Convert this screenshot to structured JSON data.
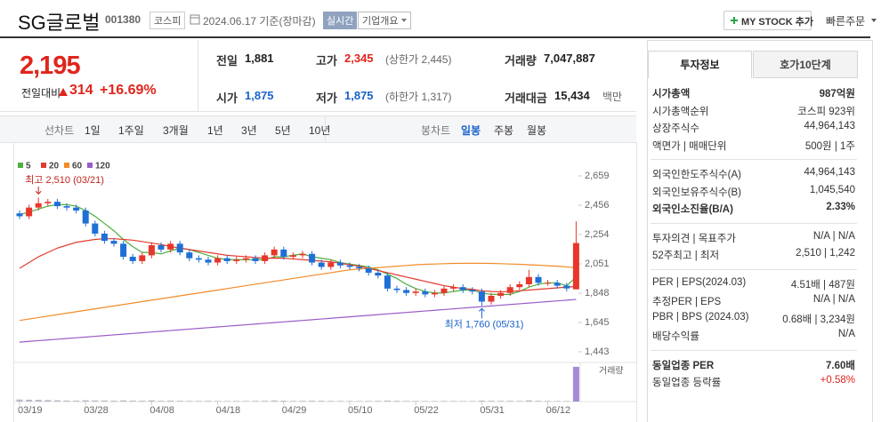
{
  "header": {
    "name": "SG글로벌",
    "code": "001380",
    "market": "코스피",
    "date": "2024.06.17 기준(장마감)",
    "realtime": "실시간",
    "company_info": "기업개요",
    "my_stock": "MY STOCK 추가",
    "quick_order": "빠른주문"
  },
  "price": {
    "current": "2,195",
    "change_label": "전일대비",
    "change": "314",
    "change_rate": "+16.69%"
  },
  "summary": [
    [
      {
        "label": "전일",
        "value": "1,881"
      },
      {
        "label": "고가",
        "value": "2,345",
        "note": "(상한가 2,445)",
        "color": "#e0251c"
      },
      {
        "label": "거래량",
        "value": "7,047,887"
      }
    ],
    [
      {
        "label": "시가",
        "value": "1,875",
        "color": "#1a62c9"
      },
      {
        "label": "저가",
        "value": "1,875",
        "note": "(하한가 1,317)",
        "color": "#1a62c9"
      },
      {
        "label": "거래대금",
        "value": "15,434",
        "note": "백만"
      }
    ]
  ],
  "chart_tabs": {
    "line_label": "선차트",
    "line_periods": [
      "1일",
      "1주일",
      "3개월",
      "1년",
      "3년",
      "5년",
      "10년"
    ],
    "candle_label": "봉차트",
    "candle_periods": [
      "일봉",
      "주봉",
      "월봉"
    ],
    "active_candle": 0
  },
  "chart_data": {
    "type": "candlestick",
    "categories": [
      "03/19",
      null,
      null,
      null,
      null,
      null,
      null,
      "03/28",
      null,
      null,
      null,
      null,
      null,
      null,
      "04/08",
      null,
      null,
      null,
      null,
      null,
      null,
      "04/18",
      null,
      null,
      null,
      null,
      null,
      null,
      "04/29",
      null,
      null,
      null,
      null,
      null,
      null,
      "05/10",
      null,
      null,
      null,
      null,
      null,
      null,
      "05/22",
      null,
      null,
      null,
      null,
      null,
      null,
      "05/31",
      null,
      null,
      null,
      null,
      null,
      null,
      "06/12",
      null,
      null,
      null
    ],
    "open": [
      2400,
      2380,
      2440,
      2470,
      2480,
      2450,
      2440,
      2420,
      2330,
      2260,
      2210,
      2190,
      2100,
      2070,
      2110,
      2180,
      2150,
      2190,
      2130,
      2090,
      2080,
      2060,
      2090,
      2070,
      2080,
      2090,
      2070,
      2110,
      2150,
      2100,
      2110,
      2120,
      2060,
      2030,
      2060,
      2040,
      2030,
      2020,
      1990,
      1970,
      1880,
      1870,
      1850,
      1860,
      1840,
      1850,
      1880,
      1890,
      1870,
      1860,
      1790,
      1830,
      1850,
      1890,
      1910,
      1960,
      1920,
      1920,
      1900,
      1875
    ],
    "high": [
      2420,
      2460,
      2510,
      2500,
      2500,
      2470,
      2460,
      2440,
      2350,
      2280,
      2230,
      2210,
      2120,
      2130,
      2200,
      2200,
      2210,
      2210,
      2150,
      2110,
      2100,
      2110,
      2110,
      2100,
      2110,
      2110,
      2130,
      2170,
      2170,
      2130,
      2140,
      2140,
      2080,
      2080,
      2080,
      2060,
      2050,
      2040,
      2010,
      1990,
      1900,
      1890,
      1880,
      1880,
      1870,
      1900,
      1910,
      1910,
      1890,
      1880,
      1850,
      1870,
      1910,
      1930,
      2010,
      1980,
      1940,
      1940,
      1920,
      2345
    ],
    "low": [
      2360,
      2360,
      2420,
      2450,
      2430,
      2420,
      2400,
      2310,
      2240,
      2190,
      2170,
      2080,
      2050,
      2050,
      2090,
      2130,
      2130,
      2110,
      2070,
      2060,
      2040,
      2040,
      2050,
      2050,
      2060,
      2050,
      2050,
      2090,
      2080,
      2080,
      2090,
      2040,
      2010,
      2010,
      2020,
      2010,
      2000,
      1970,
      1950,
      1860,
      1850,
      1830,
      1830,
      1820,
      1820,
      1830,
      1860,
      1850,
      1840,
      1760,
      1770,
      1810,
      1830,
      1870,
      1890,
      1900,
      1900,
      1880,
      1861,
      1875
    ],
    "close": [
      2380,
      2440,
      2470,
      2480,
      2450,
      2440,
      2420,
      2330,
      2260,
      2210,
      2190,
      2100,
      2070,
      2110,
      2180,
      2150,
      2190,
      2130,
      2090,
      2080,
      2060,
      2090,
      2070,
      2080,
      2090,
      2070,
      2110,
      2150,
      2100,
      2110,
      2120,
      2060,
      2030,
      2060,
      2040,
      2030,
      2020,
      1990,
      1970,
      1880,
      1870,
      1850,
      1860,
      1840,
      1850,
      1880,
      1890,
      1870,
      1860,
      1790,
      1830,
      1850,
      1890,
      1910,
      1960,
      1920,
      1920,
      1900,
      1881,
      2195
    ],
    "volume": [
      420000,
      380000,
      350000,
      300000,
      260000,
      210000,
      190000,
      260000,
      240000,
      220000,
      180000,
      230000,
      200000,
      170000,
      250000,
      160000,
      190000,
      150000,
      140000,
      130000,
      150000,
      120000,
      110000,
      130000,
      120000,
      140000,
      160000,
      220000,
      180000,
      130000,
      150000,
      170000,
      160000,
      140000,
      130000,
      120000,
      110000,
      130000,
      140000,
      200000,
      150000,
      130000,
      120000,
      110000,
      100000,
      130000,
      120000,
      100000,
      110000,
      210000,
      160000,
      140000,
      150000,
      130000,
      240000,
      150000,
      120000,
      110000,
      100000,
      7047887
    ],
    "ylim": [
      1443,
      2659
    ],
    "yticks": [
      {
        "value": 2659,
        "label": "2,659"
      },
      {
        "value": 2456,
        "label": "2,456"
      },
      {
        "value": 2254,
        "label": "2,254"
      },
      {
        "value": 2051,
        "label": "2,051"
      },
      {
        "value": 1848,
        "label": "1,848"
      },
      {
        "value": 1645,
        "label": "1,645"
      },
      {
        "value": 1443,
        "label": "1,443"
      }
    ],
    "volume_lim": [
      0,
      7200000
    ],
    "volume_label": "거래량",
    "up_color": "#e8362b",
    "down_color": "#1f6fd6",
    "volume_color": "#b9b9c4",
    "volume_today_color": "#a58ad6",
    "annotations": {
      "high": "최고 2,510 (03/21)",
      "low": "최저 1,760 (05/31)"
    },
    "moving_averages": [
      {
        "name": "5",
        "color": "#4caf3f",
        "values": [
          2390,
          2410,
          2430,
          2450,
          2460,
          2460,
          2450,
          2420,
          2380,
          2330,
          2280,
          2220,
          2170,
          2130,
          2130,
          2120,
          2140,
          2160,
          2150,
          2130,
          2110,
          2090,
          2080,
          2080,
          2080,
          2080,
          2080,
          2100,
          2100,
          2110,
          2120,
          2100,
          2090,
          2080,
          2060,
          2050,
          2040,
          2030,
          2010,
          1980,
          1950,
          1910,
          1880,
          1860,
          1850,
          1850,
          1860,
          1870,
          1870,
          1850,
          1840,
          1840,
          1840,
          1860,
          1890,
          1910,
          1920,
          1920,
          1900,
          1960
        ]
      },
      {
        "name": "20",
        "color": "#e23b2e",
        "values": [
          2020,
          2060,
          2100,
          2130,
          2160,
          2180,
          2200,
          2210,
          2220,
          2225,
          2225,
          2220,
          2215,
          2205,
          2195,
          2185,
          2170,
          2160,
          2150,
          2140,
          2130,
          2120,
          2110,
          2105,
          2100,
          2095,
          2090,
          2090,
          2090,
          2085,
          2080,
          2075,
          2070,
          2065,
          2055,
          2045,
          2035,
          2020,
          2005,
          1990,
          1975,
          1960,
          1945,
          1930,
          1915,
          1900,
          1890,
          1880,
          1875,
          1865,
          1860,
          1858,
          1860,
          1865,
          1870,
          1875,
          1880,
          1885,
          1890,
          1895
        ]
      },
      {
        "name": "60",
        "color": "#f28c28",
        "values": [
          1660,
          1670,
          1680,
          1690,
          1700,
          1710,
          1720,
          1730,
          1740,
          1750,
          1760,
          1770,
          1780,
          1790,
          1800,
          1810,
          1820,
          1830,
          1840,
          1850,
          1860,
          1870,
          1880,
          1890,
          1900,
          1910,
          1920,
          1930,
          1940,
          1950,
          1960,
          1970,
          1980,
          1990,
          2000,
          2010,
          2015,
          2020,
          2025,
          2030,
          2035,
          2040,
          2045,
          2048,
          2050,
          2052,
          2054,
          2055,
          2055,
          2055,
          2054,
          2052,
          2050,
          2048,
          2045,
          2042,
          2038,
          2035,
          2030,
          2025
        ]
      },
      {
        "name": "120",
        "color": "#9a5cc6",
        "values": [
          1510,
          1515,
          1520,
          1525,
          1530,
          1535,
          1540,
          1545,
          1550,
          1555,
          1560,
          1565,
          1570,
          1575,
          1580,
          1585,
          1590,
          1595,
          1600,
          1605,
          1610,
          1615,
          1620,
          1625,
          1630,
          1635,
          1640,
          1645,
          1650,
          1655,
          1660,
          1665,
          1670,
          1675,
          1680,
          1685,
          1690,
          1695,
          1700,
          1705,
          1710,
          1715,
          1720,
          1725,
          1730,
          1735,
          1740,
          1745,
          1750,
          1755,
          1760,
          1765,
          1770,
          1775,
          1780,
          1785,
          1790,
          1795,
          1800,
          1805
        ]
      }
    ]
  },
  "invest": {
    "tabs": [
      "투자정보",
      "호가10단계"
    ],
    "groups": [
      [
        {
          "label": "시가총액",
          "value": "987억원",
          "strong": true
        },
        {
          "label": "시가총액순위",
          "value": "코스피 923위"
        },
        {
          "label": "상장주식수",
          "value": "44,964,143"
        },
        {
          "label": "액면가 | 매매단위",
          "value": "500원 | 1주"
        }
      ],
      [
        {
          "label": "외국인한도주식수(A)",
          "value": "44,964,143"
        },
        {
          "label": "외국인보유주식수(B)",
          "value": "1,045,540"
        },
        {
          "label": "외국인소진율(B/A)",
          "value": "2.33%",
          "strong": true
        }
      ],
      [
        {
          "label": "투자의견 | 목표주가",
          "value": "N/A | N/A"
        },
        {
          "label": "52주최고 | 최저",
          "value": "2,510 | 1,242"
        }
      ],
      [
        {
          "label": "PER | EPS(2024.03)",
          "value": "4.51배 | 487원"
        },
        {
          "label": "추정PER | EPS",
          "value": "N/A | N/A"
        },
        {
          "label": "PBR | BPS (2024.03)",
          "value": "0.68배 | 3,234원"
        },
        {
          "label": "배당수익률",
          "value": "N/A"
        }
      ],
      [
        {
          "label": "동일업종 PER",
          "value": "7.60배",
          "strong": true
        },
        {
          "label": "동일업종 등락률",
          "value": "+0.58%",
          "color": "#e0251c"
        }
      ]
    ]
  }
}
